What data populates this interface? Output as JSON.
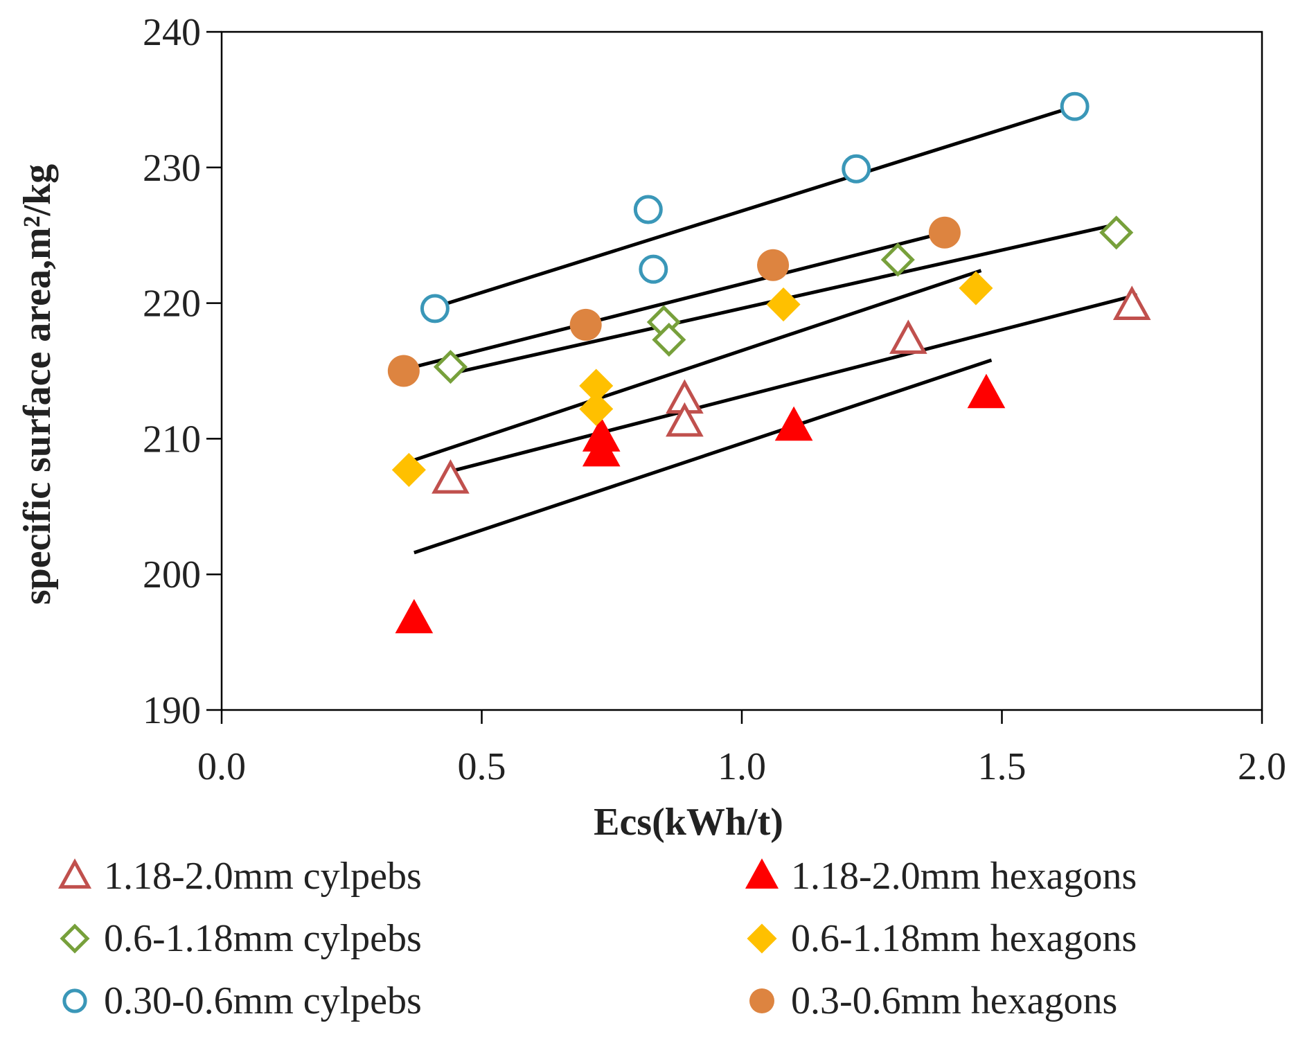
{
  "chart_data": {
    "type": "scatter",
    "title": "",
    "xlabel": "Ecs(kWh/t)",
    "ylabel": "specific surface area,m²/kg",
    "xlim": [
      0,
      2
    ],
    "ylim": [
      190,
      240
    ],
    "xticks": [
      0,
      0.5,
      1,
      1.5,
      2
    ],
    "xtick_labels": [
      "0.0",
      "0.5",
      "1.0",
      "1.5",
      "2.0"
    ],
    "yticks": [
      190,
      200,
      210,
      220,
      230,
      240
    ],
    "ytick_labels": [
      "190",
      "200",
      "210",
      "220",
      "230",
      "240"
    ],
    "grid": false,
    "legend_position": "bottom",
    "series": [
      {
        "name": "1.18-2.0mm cylpebs",
        "marker": "triangle",
        "filled": false,
        "color": "#c0504d",
        "points": [
          [
            0.44,
            207.0
          ],
          [
            0.89,
            212.9
          ],
          [
            0.89,
            211.2
          ],
          [
            1.32,
            217.3
          ],
          [
            1.75,
            219.8
          ]
        ],
        "trendline": [
          [
            0.44,
            207.6
          ],
          [
            1.76,
            220.6
          ]
        ]
      },
      {
        "name": "1.18-2.0mm hexagons",
        "marker": "triangle",
        "filled": true,
        "color": "#ff0000",
        "points": [
          [
            0.37,
            196.7
          ],
          [
            0.73,
            210.1
          ],
          [
            0.73,
            209.0
          ],
          [
            1.1,
            210.9
          ],
          [
            1.47,
            213.3
          ]
        ],
        "trendline": [
          [
            0.37,
            201.6
          ],
          [
            1.48,
            215.8
          ]
        ]
      },
      {
        "name": "0.6-1.18mm cylpebs",
        "marker": "diamond",
        "filled": false,
        "color": "#77a03b",
        "points": [
          [
            0.44,
            215.3
          ],
          [
            0.85,
            218.6
          ],
          [
            0.86,
            217.3
          ],
          [
            1.3,
            223.2
          ],
          [
            1.72,
            225.2
          ]
        ],
        "trendline": [
          [
            0.44,
            214.8
          ],
          [
            1.72,
            225.8
          ]
        ]
      },
      {
        "name": "0.6-1.18mm hexagons",
        "marker": "diamond",
        "filled": true,
        "color": "#ffc000",
        "points": [
          [
            0.36,
            207.7
          ],
          [
            0.72,
            213.9
          ],
          [
            0.72,
            212.2
          ],
          [
            1.08,
            219.9
          ],
          [
            1.45,
            221.1
          ]
        ],
        "trendline": [
          [
            0.36,
            208.3
          ],
          [
            1.46,
            222.4
          ]
        ]
      },
      {
        "name": "0.30-0.6mm cylpebs",
        "marker": "circle",
        "filled": false,
        "color": "#3a97b8",
        "points": [
          [
            0.41,
            219.6
          ],
          [
            0.82,
            226.9
          ],
          [
            0.83,
            222.5
          ],
          [
            1.22,
            229.9
          ],
          [
            1.64,
            234.5
          ]
        ],
        "trendline": [
          [
            0.41,
            219.7
          ],
          [
            1.64,
            234.5
          ]
        ]
      },
      {
        "name": "0.3-0.6mm hexagons",
        "marker": "circle",
        "filled": true,
        "color": "#dd8440",
        "points": [
          [
            0.35,
            215.0
          ],
          [
            0.7,
            218.4
          ],
          [
            1.06,
            222.8
          ],
          [
            1.39,
            225.2
          ]
        ],
        "trendline": [
          [
            0.35,
            215.1
          ],
          [
            1.39,
            225.2
          ]
        ]
      }
    ]
  }
}
